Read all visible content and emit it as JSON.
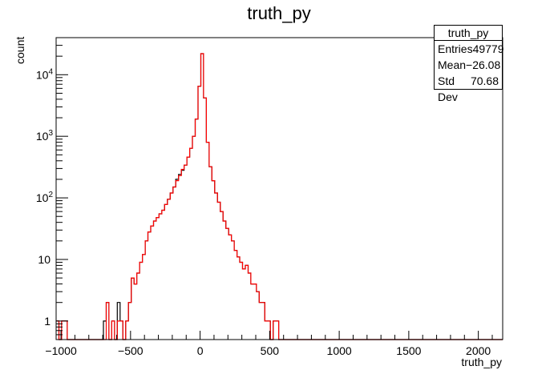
{
  "chart_data": {
    "type": "histogram",
    "title": "truth_py",
    "xlabel": "truth_py",
    "ylabel": "count",
    "xlim": [
      -1035,
      2175
    ],
    "ylim": [
      0.5,
      40000
    ],
    "yscale": "log",
    "x_ticks": [
      -1000,
      -500,
      0,
      500,
      1000,
      1500,
      2000
    ],
    "y_ticks": [
      {
        "value": 1,
        "label": "1"
      },
      {
        "value": 10,
        "label": "10"
      },
      {
        "value": 100,
        "label": "10",
        "exponent": "2"
      },
      {
        "value": 1000,
        "label": "10",
        "exponent": "3"
      },
      {
        "value": 10000,
        "label": "10",
        "exponent": "4"
      }
    ],
    "bin_width": 20,
    "series": [
      {
        "color": "#000000",
        "bins": [
          [
            -1035,
            1
          ],
          [
            -1015,
            0
          ],
          [
            -995,
            1
          ],
          [
            -975,
            1
          ],
          [
            -955,
            0
          ],
          [
            -935,
            0
          ],
          [
            -915,
            0
          ],
          [
            -895,
            0
          ],
          [
            -875,
            0
          ],
          [
            -855,
            0
          ],
          [
            -835,
            0
          ],
          [
            -815,
            0
          ],
          [
            -795,
            0
          ],
          [
            -775,
            0
          ],
          [
            -755,
            0
          ],
          [
            -735,
            0
          ],
          [
            -715,
            0
          ],
          [
            -695,
            1
          ],
          [
            -675,
            2
          ],
          [
            -655,
            0
          ],
          [
            -635,
            1
          ],
          [
            -615,
            0
          ],
          [
            -595,
            2
          ],
          [
            -575,
            1
          ],
          [
            -555,
            0
          ],
          [
            -535,
            1
          ],
          [
            -515,
            2
          ],
          [
            -495,
            5
          ],
          [
            -475,
            4
          ],
          [
            -455,
            6
          ],
          [
            -435,
            9
          ],
          [
            -415,
            12
          ],
          [
            -395,
            20
          ],
          [
            -375,
            28
          ],
          [
            -355,
            35
          ],
          [
            -335,
            42
          ],
          [
            -315,
            48
          ],
          [
            -295,
            55
          ],
          [
            -275,
            63
          ],
          [
            -255,
            78
          ],
          [
            -235,
            95
          ],
          [
            -215,
            120
          ],
          [
            -195,
            150
          ],
          [
            -175,
            200
          ],
          [
            -155,
            240
          ],
          [
            -135,
            280
          ],
          [
            -115,
            340
          ],
          [
            -95,
            460
          ],
          [
            -75,
            640
          ],
          [
            -55,
            1000
          ],
          [
            -35,
            1900
          ],
          [
            -15,
            6500
          ],
          [
            5,
            22000
          ],
          [
            25,
            4200
          ],
          [
            45,
            800
          ],
          [
            65,
            320
          ],
          [
            85,
            190
          ],
          [
            105,
            120
          ],
          [
            125,
            85
          ],
          [
            145,
            60
          ],
          [
            165,
            42
          ],
          [
            185,
            32
          ],
          [
            205,
            25
          ],
          [
            225,
            20
          ],
          [
            245,
            14
          ],
          [
            265,
            11
          ],
          [
            285,
            9
          ],
          [
            305,
            7
          ],
          [
            325,
            8
          ],
          [
            345,
            6
          ],
          [
            365,
            4
          ],
          [
            385,
            4
          ],
          [
            405,
            3
          ],
          [
            425,
            2
          ],
          [
            445,
            2
          ],
          [
            465,
            1
          ],
          [
            485,
            1
          ],
          [
            505,
            0
          ],
          [
            525,
            1
          ],
          [
            545,
            1
          ],
          [
            565,
            0
          ]
        ]
      },
      {
        "color": "#ff0000",
        "bins": [
          [
            -1035,
            1
          ],
          [
            -1015,
            0
          ],
          [
            -995,
            1
          ],
          [
            -975,
            1
          ],
          [
            -955,
            0
          ],
          [
            -935,
            0
          ],
          [
            -915,
            0
          ],
          [
            -895,
            0
          ],
          [
            -875,
            0
          ],
          [
            -855,
            0
          ],
          [
            -835,
            0
          ],
          [
            -815,
            0
          ],
          [
            -795,
            0
          ],
          [
            -775,
            0
          ],
          [
            -755,
            0
          ],
          [
            -735,
            0
          ],
          [
            -715,
            0
          ],
          [
            -695,
            0
          ],
          [
            -675,
            2
          ],
          [
            -655,
            0
          ],
          [
            -635,
            1
          ],
          [
            -615,
            0
          ],
          [
            -595,
            1
          ],
          [
            -575,
            1
          ],
          [
            -555,
            0
          ],
          [
            -535,
            1
          ],
          [
            -515,
            2
          ],
          [
            -495,
            5
          ],
          [
            -475,
            4
          ],
          [
            -455,
            6
          ],
          [
            -435,
            9
          ],
          [
            -415,
            12
          ],
          [
            -395,
            20
          ],
          [
            -375,
            28
          ],
          [
            -355,
            35
          ],
          [
            -335,
            42
          ],
          [
            -315,
            48
          ],
          [
            -295,
            55
          ],
          [
            -275,
            63
          ],
          [
            -255,
            78
          ],
          [
            -235,
            95
          ],
          [
            -215,
            120
          ],
          [
            -195,
            150
          ],
          [
            -175,
            190
          ],
          [
            -155,
            230
          ],
          [
            -135,
            290
          ],
          [
            -115,
            340
          ],
          [
            -95,
            460
          ],
          [
            -75,
            640
          ],
          [
            -55,
            1000
          ],
          [
            -35,
            1900
          ],
          [
            -15,
            6500
          ],
          [
            5,
            22000
          ],
          [
            25,
            4200
          ],
          [
            45,
            800
          ],
          [
            65,
            320
          ],
          [
            85,
            190
          ],
          [
            105,
            120
          ],
          [
            125,
            85
          ],
          [
            145,
            60
          ],
          [
            165,
            42
          ],
          [
            185,
            32
          ],
          [
            205,
            25
          ],
          [
            225,
            20
          ],
          [
            245,
            14
          ],
          [
            265,
            11
          ],
          [
            285,
            9
          ],
          [
            305,
            7
          ],
          [
            325,
            8
          ],
          [
            345,
            6
          ],
          [
            365,
            4
          ],
          [
            385,
            4
          ],
          [
            405,
            3
          ],
          [
            425,
            2
          ],
          [
            445,
            2
          ],
          [
            465,
            1
          ],
          [
            485,
            1
          ],
          [
            505,
            0
          ],
          [
            525,
            1
          ],
          [
            545,
            1
          ],
          [
            565,
            0
          ]
        ]
      }
    ]
  },
  "stats": {
    "title": "truth_py",
    "rows": [
      {
        "label": "Entries",
        "value": "49779"
      },
      {
        "label": "Mean",
        "value": "−26.08"
      },
      {
        "label": "Std Dev",
        "value": "70.68"
      }
    ]
  }
}
